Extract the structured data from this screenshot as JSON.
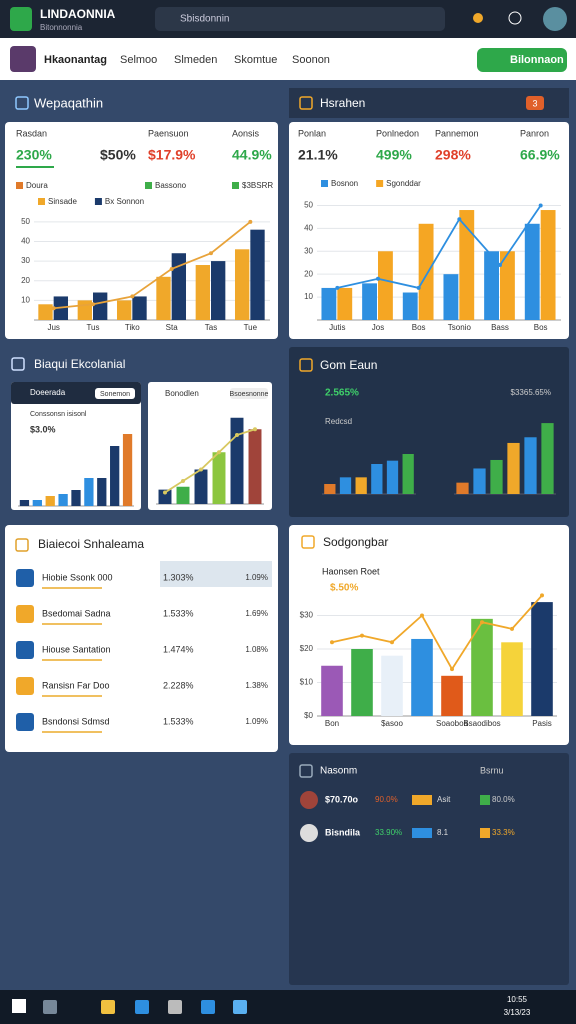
{
  "topbar": {
    "title": "LINDAONNIA",
    "subtitle": "Bitonnonnia",
    "search": "Sbisdonnin"
  },
  "nav": {
    "brand": "Hkaonantag",
    "links": [
      "Selmoo",
      "Slmeden",
      "Skomtue",
      "Soonon"
    ],
    "button": "Bilonnaon"
  },
  "panel_a": {
    "title": "Wepaqathin",
    "stats": [
      {
        "label": "Rasdan",
        "value": "230%"
      },
      {
        "value": "$50%"
      },
      {
        "label": "Paensuon",
        "value": "$17.9%"
      },
      {
        "label": "Aonsis",
        "value": "44.9%"
      }
    ],
    "keys": [
      {
        "name": "Doura",
        "color": "#e07a2a"
      },
      {
        "name": "Bassono",
        "color": "#3fae49"
      },
      {
        "name": "$3BSRR",
        "color": "#3fae49"
      }
    ],
    "chart": {
      "type": "bar",
      "categories": [
        "Jus",
        "Tus",
        "Tiko",
        "Sta",
        "Tas",
        "Tue"
      ],
      "series": [
        {
          "name": "Sinsade",
          "color": "#f0a82a",
          "values": [
            8,
            10,
            10,
            22,
            28,
            36
          ]
        },
        {
          "name": "Bx Sonnon",
          "color": "#1b3a6b",
          "values": [
            12,
            14,
            12,
            34,
            30,
            46
          ]
        }
      ],
      "line": {
        "color": "#e8a33a",
        "values": [
          6,
          8,
          12,
          26,
          34,
          50
        ]
      },
      "ylim": [
        0,
        55
      ],
      "yticks": [
        10,
        20,
        30,
        40,
        50
      ]
    }
  },
  "panel_b": {
    "title": "Hsrahen",
    "badge": "3",
    "stats": [
      {
        "label": "Ponlan",
        "value": "21.1%"
      },
      {
        "label": "Ponlnedon",
        "value": "499%"
      },
      {
        "label": "Pannemon",
        "value": "298%"
      },
      {
        "label": "Panron",
        "value": "66.9%"
      }
    ],
    "chart": {
      "type": "bar",
      "categories": [
        "Jutis",
        "Jos",
        "Bos",
        "Tsonio",
        "Bass",
        "Bos"
      ],
      "series": [
        {
          "name": "Bosnon",
          "color": "#2e8fe0",
          "values": [
            14,
            16,
            12,
            20,
            30,
            42
          ]
        },
        {
          "name": "Sgonddar",
          "color": "#f5a623",
          "values": [
            14,
            30,
            42,
            48,
            30,
            48
          ]
        }
      ],
      "line": {
        "color": "#2e8fe0",
        "values": [
          14,
          18,
          14,
          44,
          24,
          50
        ]
      },
      "ylim": [
        0,
        55
      ],
      "yticks": [
        10,
        20,
        30,
        40,
        50
      ]
    }
  },
  "panel_c": {
    "title": "Biaqui Ekcolanial",
    "cards": [
      {
        "title": "Doeerada",
        "tag": "Sonemon",
        "subtitle": "Conssonsn isisonl",
        "value": "$3.0%",
        "chart": {
          "type": "bar",
          "values": [
            3,
            3,
            5,
            6,
            8,
            14,
            14,
            30,
            36
          ],
          "colors": [
            "#1b3a6b",
            "#2e8fe0",
            "#f0a82a",
            "#2e8fe0",
            "#1b3a6b",
            "#2e8fe0",
            "#1b3a6b",
            "#1b3a6b",
            "#e07a2a"
          ],
          "ylim": [
            0,
            40
          ]
        }
      },
      {
        "title": "Bonodlen",
        "tag": "Bsoesnonne",
        "chart": {
          "type": "bar",
          "values": [
            5,
            6,
            12,
            18,
            30,
            26
          ],
          "colors": [
            "#1b3a6b",
            "#3fae49",
            "#1b3a6b",
            "#8cc63f",
            "#1b3a6b",
            "#a0443a"
          ],
          "line": {
            "color": "#d8c860",
            "values": [
              4,
              8,
              12,
              18,
              24,
              26
            ]
          },
          "ylim": [
            0,
            32
          ]
        }
      }
    ]
  },
  "panel_d": {
    "title": "Gom Eaun",
    "stat": "2.565%",
    "stat_right": "$3365.65%",
    "label": "Redcsd",
    "charts": [
      {
        "type": "bar",
        "values": [
          6,
          10,
          10,
          18,
          20,
          24
        ],
        "colors": [
          "#e07a2a",
          "#2e8fe0",
          "#f0a82a",
          "#2e8fe0",
          "#2e8fe0",
          "#3fae49"
        ],
        "ylim": [
          0,
          30
        ]
      },
      {
        "type": "bar",
        "values": [
          8,
          18,
          24,
          36,
          40,
          50
        ],
        "colors": [
          "#e07a2a",
          "#2e8fe0",
          "#3fae49",
          "#f0a82a",
          "#2e8fe0",
          "#3fae49"
        ],
        "ylim": [
          0,
          55
        ]
      }
    ]
  },
  "panel_e": {
    "title": "Biaiecoi Snhaleama",
    "rows": [
      {
        "name": "Hiobie Ssonk 000",
        "v1": "1.303%",
        "v2": "1.09%"
      },
      {
        "name": "Bsedomai Sadna",
        "v1": "1.533%",
        "v2": "1.69%"
      },
      {
        "name": "Hiouse Santation",
        "v1": "1.474%",
        "v2": "1.08%"
      },
      {
        "name": "Ransisn Far Doo",
        "v1": "2.228%",
        "v2": "1.38%"
      },
      {
        "name": "Bsndonsi Sdmsd",
        "v1": "1.533%",
        "v2": "1.09%"
      }
    ]
  },
  "panel_f": {
    "title": "Sodgongbar",
    "subtitle": "Haonsen Roet",
    "value": "$.50%",
    "chart": {
      "type": "bar",
      "categories": [
        "Bon",
        null,
        "$asoo",
        null,
        "Soaoboa",
        "Bsaodibos",
        null,
        "Pasis"
      ],
      "values": [
        15,
        20,
        18,
        23,
        12,
        29,
        22,
        34
      ],
      "colors": [
        "#9b59b6",
        "#3fae49",
        "#e8f0f8",
        "#2e8fe0",
        "#e05a1a",
        "#6abf40",
        "#f5d33a",
        "#1b3a6b"
      ],
      "line": {
        "color": "#f0a82a",
        "values": [
          22,
          24,
          22,
          30,
          14,
          28,
          26,
          36
        ]
      },
      "ylim": [
        0,
        40
      ],
      "yticks": [
        {
          "value": 0,
          "label": "$0"
        },
        {
          "value": 10,
          "label": "$10"
        },
        {
          "value": 20,
          "label": "$20"
        },
        {
          "value": 30,
          "label": "$30"
        }
      ]
    }
  },
  "panel_g": {
    "title": "Nasonm",
    "right": "Bsrnu",
    "rows": [
      {
        "name": "$70.70o",
        "a": "90.0%",
        "b": "Asit",
        "c": "80.0%"
      },
      {
        "name": "Bisndila",
        "a": "33.90%",
        "b": "8.1",
        "c": "33.3%"
      }
    ]
  },
  "taskbar": {
    "time": "10:55",
    "date": "3/13/23"
  }
}
